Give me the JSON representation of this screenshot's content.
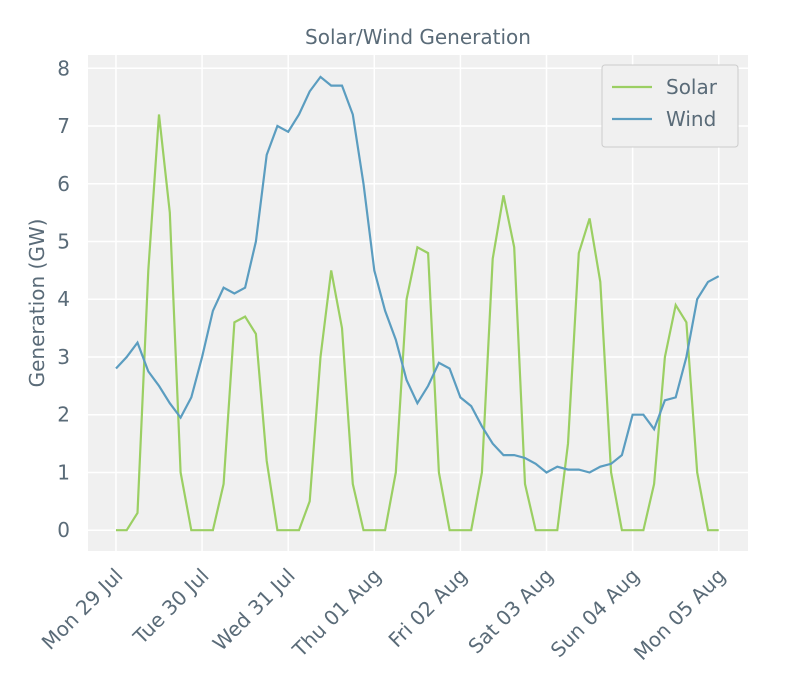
{
  "chart_data": {
    "type": "line",
    "title": "Solar/Wind Generation",
    "y_label": "Generation (GW)",
    "x": [
      0,
      0.125,
      0.25,
      0.375,
      0.5,
      0.625,
      0.75,
      0.875,
      1,
      1.125,
      1.25,
      1.375,
      1.5,
      1.625,
      1.75,
      1.875,
      2,
      2.125,
      2.25,
      2.375,
      2.5,
      2.625,
      2.75,
      2.875,
      3,
      3.125,
      3.25,
      3.375,
      3.5,
      3.625,
      3.75,
      3.875,
      4,
      4.125,
      4.25,
      4.375,
      4.5,
      4.625,
      4.75,
      4.875,
      5,
      5.125,
      5.25,
      5.375,
      5.5,
      5.625,
      5.75,
      5.875,
      6,
      6.125,
      6.25,
      6.375,
      6.5,
      6.625,
      6.75,
      6.875,
      7
    ],
    "series": [
      {
        "name": "Solar",
        "color": "#9bcf63",
        "values": [
          0,
          0,
          0.3,
          4.5,
          7.2,
          5.5,
          1.0,
          0,
          0,
          0,
          0.8,
          3.6,
          3.7,
          3.4,
          1.2,
          0,
          0,
          0,
          0.5,
          3.0,
          4.5,
          3.5,
          0.8,
          0,
          0,
          0,
          1.0,
          4.0,
          4.9,
          4.8,
          1.0,
          0,
          0,
          0,
          1.0,
          4.7,
          5.8,
          4.9,
          0.8,
          0,
          0,
          0,
          1.5,
          4.8,
          5.4,
          4.3,
          1.0,
          0,
          0,
          0,
          0.8,
          3.0,
          3.9,
          3.6,
          1.0,
          0,
          0
        ]
      },
      {
        "name": "Wind",
        "color": "#5b9dc0",
        "values": [
          2.8,
          3.0,
          3.25,
          2.75,
          2.5,
          2.2,
          1.95,
          2.3,
          3.0,
          3.8,
          4.2,
          4.1,
          4.2,
          5.0,
          6.5,
          7.0,
          6.9,
          7.2,
          7.6,
          7.85,
          7.7,
          7.7,
          7.2,
          6.0,
          4.5,
          3.8,
          3.3,
          2.6,
          2.2,
          2.5,
          2.9,
          2.8,
          2.3,
          2.15,
          1.8,
          1.5,
          1.3,
          1.3,
          1.25,
          1.15,
          1.0,
          1.1,
          1.05,
          1.05,
          1.0,
          1.1,
          1.15,
          1.3,
          2.0,
          2.0,
          1.75,
          2.25,
          2.3,
          3.0,
          4.0,
          4.3,
          4.4
        ]
      }
    ],
    "xlim": [
      -0.325,
      7.34
    ],
    "xticks": [
      {
        "value": 0,
        "label": "Mon 29 Jul"
      },
      {
        "value": 1,
        "label": "Tue 30 Jul"
      },
      {
        "value": 2,
        "label": "Wed 31 Jul"
      },
      {
        "value": 3,
        "label": "Thu 01 Aug"
      },
      {
        "value": 4,
        "label": "Fri 02 Aug"
      },
      {
        "value": 5,
        "label": "Sat 03 Aug"
      },
      {
        "value": 6,
        "label": "Sun 04 Aug"
      },
      {
        "value": 7,
        "label": "Mon 05 Aug"
      }
    ],
    "ylim": [
      -0.36,
      8.23
    ],
    "yticks": [
      0,
      1,
      2,
      3,
      4,
      5,
      6,
      7,
      8
    ],
    "grid": true,
    "legend": "upper right"
  }
}
